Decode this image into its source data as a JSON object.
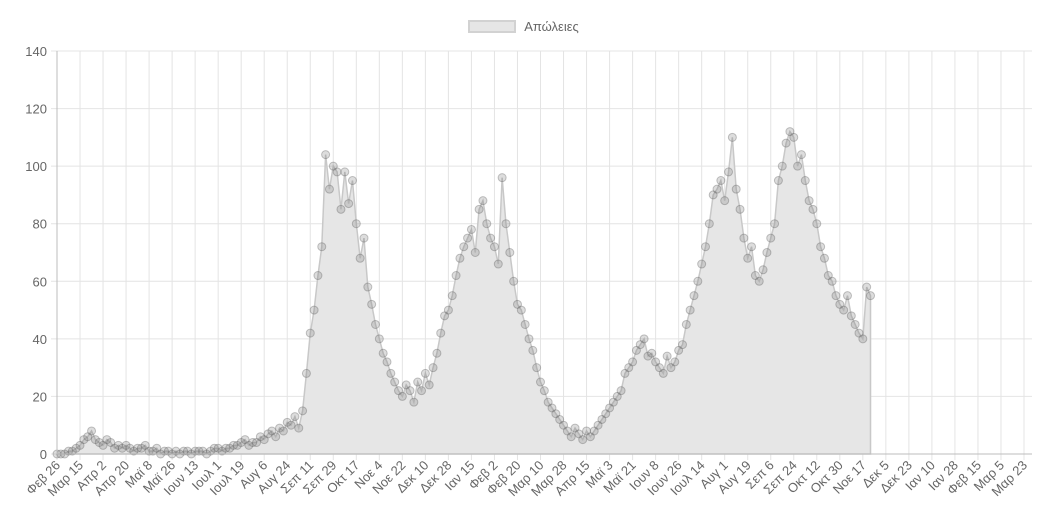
{
  "legend": {
    "label": "Απώλειες",
    "fill": "#e6e6e6",
    "border": "#d2d2d2"
  },
  "chart_data": {
    "type": "line",
    "title": "",
    "xlabel": "",
    "ylabel": "",
    "ylim": [
      0,
      140
    ],
    "y_ticks": [
      0,
      20,
      40,
      60,
      80,
      100,
      120,
      140
    ],
    "grid": true,
    "legend_position": "top",
    "x_tick_labels": [
      "Φεβ 26",
      "Μαρ 15",
      "Απρ 2",
      "Απρ 20",
      "Μαϊ 8",
      "Μαϊ 26",
      "Ιουν 13",
      "Ιουλ 1",
      "Ιουλ 19",
      "Αυγ 6",
      "Αυγ 24",
      "Σεπ 11",
      "Σεπ 29",
      "Οκτ 17",
      "Νοε 4",
      "Νοε 22",
      "Δεκ 10",
      "Δεκ 28",
      "Ιαν 15",
      "Φεβ 2",
      "Φεβ 20",
      "Μαρ 10",
      "Μαρ 28",
      "Απρ 15",
      "Μαϊ 3",
      "Μαϊ 21",
      "Ιουν 8",
      "Ιουν 26",
      "Ιουλ 14",
      "Αυγ 1",
      "Αυγ 19",
      "Σεπ 6",
      "Σεπ 24",
      "Οκτ 12",
      "Οκτ 30",
      "Νοε 17",
      "Δεκ 5",
      "Δεκ 23",
      "Ιαν 10",
      "Ιαν 28",
      "Φεβ 15",
      "Μαρ 5",
      "Μαρ 23"
    ],
    "x_tick_interval_days": 18,
    "sample_step_days": 3,
    "series": [
      {
        "name": "Απώλειες",
        "values": [
          0,
          0,
          0,
          1,
          1,
          2,
          3,
          5,
          6,
          8,
          5,
          4,
          3,
          5,
          4,
          2,
          3,
          2,
          3,
          2,
          1,
          2,
          2,
          3,
          1,
          1,
          2,
          0,
          1,
          1,
          0,
          1,
          0,
          1,
          1,
          0,
          1,
          1,
          1,
          0,
          1,
          2,
          2,
          1,
          2,
          2,
          3,
          3,
          4,
          5,
          3,
          4,
          4,
          6,
          5,
          7,
          8,
          6,
          9,
          8,
          11,
          10,
          13,
          9,
          15,
          28,
          42,
          50,
          62,
          72,
          104,
          92,
          100,
          98,
          85,
          98,
          87,
          95,
          80,
          68,
          75,
          58,
          52,
          45,
          40,
          35,
          32,
          28,
          25,
          22,
          20,
          24,
          22,
          18,
          25,
          22,
          28,
          24,
          30,
          35,
          42,
          48,
          50,
          55,
          62,
          68,
          72,
          75,
          78,
          70,
          85,
          88,
          80,
          75,
          72,
          66,
          96,
          80,
          70,
          60,
          52,
          50,
          45,
          40,
          36,
          30,
          25,
          22,
          18,
          16,
          14,
          12,
          10,
          8,
          6,
          9,
          7,
          5,
          8,
          6,
          8,
          10,
          12,
          14,
          16,
          18,
          20,
          22,
          28,
          30,
          32,
          36,
          38,
          40,
          34,
          35,
          32,
          30,
          28,
          34,
          30,
          32,
          36,
          38,
          45,
          50,
          55,
          60,
          66,
          72,
          80,
          90,
          92,
          95,
          88,
          98,
          110,
          92,
          85,
          75,
          68,
          72,
          62,
          60,
          64,
          70,
          75,
          80,
          95,
          100,
          108,
          112,
          110,
          100,
          104,
          95,
          88,
          85,
          80,
          72,
          68,
          62,
          60,
          55,
          52,
          50,
          55,
          48,
          45,
          42,
          40,
          58,
          55
        ]
      }
    ]
  }
}
